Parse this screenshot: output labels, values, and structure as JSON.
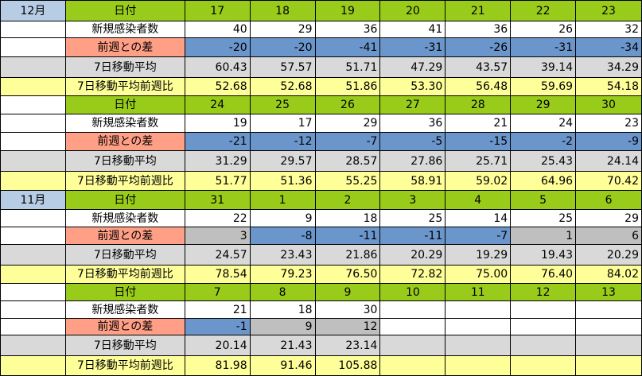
{
  "row_labels": {
    "date": "日付",
    "new_cases": "新規感染者数",
    "diff": "前週との差",
    "avg7": "7日移動平均",
    "ratio": "7日移動平均前週比"
  },
  "blocks": [
    {
      "month": "12月",
      "days": [
        "17",
        "18",
        "19",
        "20",
        "21",
        "22",
        "23"
      ],
      "new_cases": [
        "40",
        "29",
        "36",
        "41",
        "36",
        "26",
        "32"
      ],
      "diff": [
        "-20",
        "-20",
        "-41",
        "-31",
        "-26",
        "-31",
        "-34"
      ],
      "avg7": [
        "60.43",
        "57.57",
        "51.71",
        "47.29",
        "43.57",
        "39.14",
        "34.29"
      ],
      "ratio": [
        "52.68",
        "52.68",
        "51.86",
        "53.30",
        "56.48",
        "59.69",
        "54.18"
      ]
    },
    {
      "month": "",
      "days": [
        "24",
        "25",
        "26",
        "27",
        "28",
        "29",
        "30"
      ],
      "new_cases": [
        "19",
        "17",
        "29",
        "36",
        "21",
        "24",
        "23"
      ],
      "diff": [
        "-21",
        "-12",
        "-7",
        "-5",
        "-15",
        "-2",
        "-9"
      ],
      "avg7": [
        "31.29",
        "29.57",
        "28.57",
        "27.86",
        "25.71",
        "25.43",
        "24.14"
      ],
      "ratio": [
        "51.77",
        "51.36",
        "55.25",
        "58.91",
        "59.02",
        "64.96",
        "70.42"
      ]
    },
    {
      "month": "11月",
      "days": [
        "31",
        "1",
        "2",
        "3",
        "4",
        "5",
        "6"
      ],
      "new_cases": [
        "22",
        "9",
        "18",
        "25",
        "14",
        "25",
        "29"
      ],
      "diff": [
        "3",
        "-8",
        "-11",
        "-11",
        "-7",
        "1",
        "6"
      ],
      "avg7": [
        "24.57",
        "23.43",
        "21.86",
        "20.29",
        "19.29",
        "19.43",
        "20.29"
      ],
      "ratio": [
        "78.54",
        "79.23",
        "76.50",
        "72.82",
        "75.00",
        "76.40",
        "84.02"
      ]
    },
    {
      "month": "",
      "days": [
        "7",
        "8",
        "9",
        "10",
        "11",
        "12",
        "13"
      ],
      "new_cases": [
        "21",
        "18",
        "30",
        "",
        "",
        "",
        ""
      ],
      "diff": [
        "-1",
        "9",
        "12",
        "",
        "",
        "",
        ""
      ],
      "avg7": [
        "20.14",
        "21.43",
        "23.14",
        "",
        "",
        "",
        ""
      ],
      "ratio": [
        "81.98",
        "91.46",
        "105.88",
        "",
        "",
        "",
        ""
      ]
    }
  ],
  "colors": {
    "header_green": "#99cc1a",
    "diff_label": "#ff9f86",
    "negative": "#6b96cc",
    "positive": "#bfbfbf",
    "avg_gray": "#d9d9d9",
    "ratio_yellow": "#ffff99",
    "month_highlight": "#b7cde6"
  }
}
